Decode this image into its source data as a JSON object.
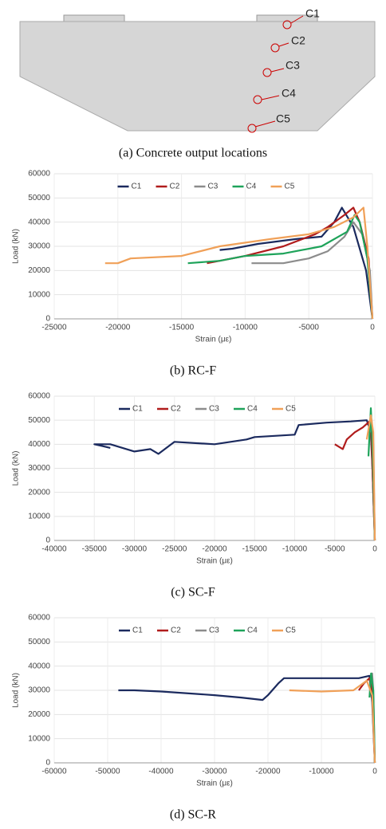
{
  "diagram": {
    "labels": [
      "C1",
      "C2",
      "C3",
      "C4",
      "C5"
    ],
    "caption": "(a) Concrete output locations"
  },
  "chart_data": [
    {
      "type": "line",
      "caption": "(b) RC-F",
      "xlabel": "Strain (με)",
      "ylabel": "Load (kN)",
      "xlim": [
        -25000,
        0
      ],
      "xticks": [
        -25000,
        -20000,
        -15000,
        -10000,
        -5000,
        0
      ],
      "ylim": [
        0,
        60000
      ],
      "yticks": [
        0,
        10000,
        20000,
        30000,
        40000,
        50000,
        60000
      ],
      "grid": true,
      "series": [
        {
          "name": "C1",
          "color": "#1b2a5e",
          "x": [
            0,
            -500,
            -1500,
            -2400,
            -3000,
            -4000,
            -6000,
            -9000,
            -11000,
            -12000
          ],
          "values": [
            0,
            20000,
            38000,
            46000,
            40000,
            34000,
            33000,
            31000,
            29000,
            28500
          ]
        },
        {
          "name": "C2",
          "color": "#b01c1c",
          "x": [
            0,
            -300,
            -1000,
            -1500,
            -2200,
            -3500,
            -4500,
            -7000,
            -10000,
            -12000,
            -13000
          ],
          "values": [
            0,
            25000,
            40000,
            46000,
            43000,
            38000,
            35000,
            30000,
            26000,
            24000,
            23000
          ]
        },
        {
          "name": "C3",
          "color": "#8c8c8c",
          "x": [
            0,
            -200,
            -800,
            -1500,
            -2200,
            -3500,
            -5000,
            -7000,
            -9500
          ],
          "values": [
            0,
            20000,
            35000,
            40000,
            34000,
            28000,
            25000,
            23000,
            23000
          ]
        },
        {
          "name": "C4",
          "color": "#1ea35a",
          "x": [
            0,
            -400,
            -1000,
            -1400,
            -2000,
            -4000,
            -7000,
            -10000,
            -12000,
            -14500
          ],
          "values": [
            0,
            25000,
            40000,
            43000,
            36000,
            30000,
            27000,
            26000,
            24000,
            23000
          ]
        },
        {
          "name": "C5",
          "color": "#f0a058",
          "x": [
            0,
            -400,
            -700,
            -1500,
            -3000,
            -5000,
            -8000,
            -12000,
            -15000,
            -19000,
            -20000,
            -21000
          ],
          "values": [
            0,
            30000,
            46000,
            42000,
            38000,
            35000,
            33000,
            30000,
            26000,
            25000,
            23000,
            23000
          ]
        }
      ]
    },
    {
      "type": "line",
      "caption": "(c) SC-F",
      "xlabel": "Strain (με)",
      "ylabel": "Load (kN)",
      "xlim": [
        -40000,
        0
      ],
      "xticks": [
        -40000,
        -35000,
        -30000,
        -25000,
        -20000,
        -15000,
        -10000,
        -5000,
        0
      ],
      "ylim": [
        0,
        60000
      ],
      "yticks": [
        0,
        10000,
        20000,
        30000,
        40000,
        50000,
        60000
      ],
      "grid": true,
      "series": [
        {
          "name": "C1",
          "color": "#1b2a5e",
          "x": [
            0,
            -300,
            -500,
            -1000,
            -3000,
            -6000,
            -9500,
            -10000,
            -15000,
            -16000,
            -20000,
            -25000,
            -27000,
            -28000,
            -30000,
            -33000,
            -35000,
            -33000
          ],
          "values": [
            0,
            30000,
            45000,
            50000,
            49500,
            49000,
            48000,
            44000,
            43000,
            42000,
            40000,
            41000,
            36000,
            38000,
            37000,
            40000,
            40000,
            38500
          ]
        },
        {
          "name": "C2",
          "color": "#b01c1c",
          "x": [
            0,
            -500,
            -1500,
            -2500,
            -3500,
            -4000,
            -5000
          ],
          "values": [
            0,
            50000,
            47000,
            45000,
            42000,
            38000,
            40000
          ]
        },
        {
          "name": "C3",
          "color": "#8c8c8c",
          "x": [
            0,
            -200,
            -400,
            -600
          ],
          "values": [
            0,
            40000,
            50000,
            45000
          ]
        },
        {
          "name": "C4",
          "color": "#1ea35a",
          "x": [
            0,
            -300,
            -500,
            -800
          ],
          "values": [
            0,
            40000,
            55000,
            35000
          ]
        },
        {
          "name": "C5",
          "color": "#f0a058",
          "x": [
            0,
            -200,
            -500,
            -1000
          ],
          "values": [
            0,
            45000,
            52000,
            42000
          ]
        }
      ]
    },
    {
      "type": "line",
      "caption": "(d) SC-R",
      "xlabel": "Strain (με)",
      "ylabel": "Load (kN)",
      "xlim": [
        -60000,
        0
      ],
      "xticks": [
        -60000,
        -50000,
        -40000,
        -30000,
        -20000,
        -10000,
        0
      ],
      "ylim": [
        0,
        60000
      ],
      "yticks": [
        0,
        10000,
        20000,
        30000,
        40000,
        50000,
        60000
      ],
      "grid": true,
      "series": [
        {
          "name": "C1",
          "color": "#1b2a5e",
          "x": [
            0,
            -500,
            -1000,
            -3000,
            -10000,
            -17000,
            -18000,
            -20000,
            -21000,
            -25000,
            -30000,
            -40000,
            -45000,
            -48000
          ],
          "values": [
            0,
            25000,
            36000,
            35000,
            35000,
            35000,
            33000,
            28000,
            26000,
            27000,
            28000,
            29500,
            30000,
            30000
          ]
        },
        {
          "name": "C2",
          "color": "#b01c1c",
          "x": [
            0,
            -500,
            -1000,
            -2000,
            -3000
          ],
          "values": [
            0,
            30000,
            35000,
            33000,
            30000
          ]
        },
        {
          "name": "C3",
          "color": "#8c8c8c",
          "x": [
            0,
            -300,
            -500,
            -800
          ],
          "values": [
            0,
            30000,
            37000,
            33000
          ]
        },
        {
          "name": "C4",
          "color": "#1ea35a",
          "x": [
            0,
            -300,
            -700,
            -1000
          ],
          "values": [
            0,
            30000,
            37000,
            27000
          ]
        },
        {
          "name": "C5",
          "color": "#f0a058",
          "x": [
            0,
            -500,
            -1500,
            -4000,
            -10000,
            -16000
          ],
          "values": [
            0,
            28000,
            34000,
            30000,
            29500,
            30000
          ]
        }
      ]
    }
  ]
}
